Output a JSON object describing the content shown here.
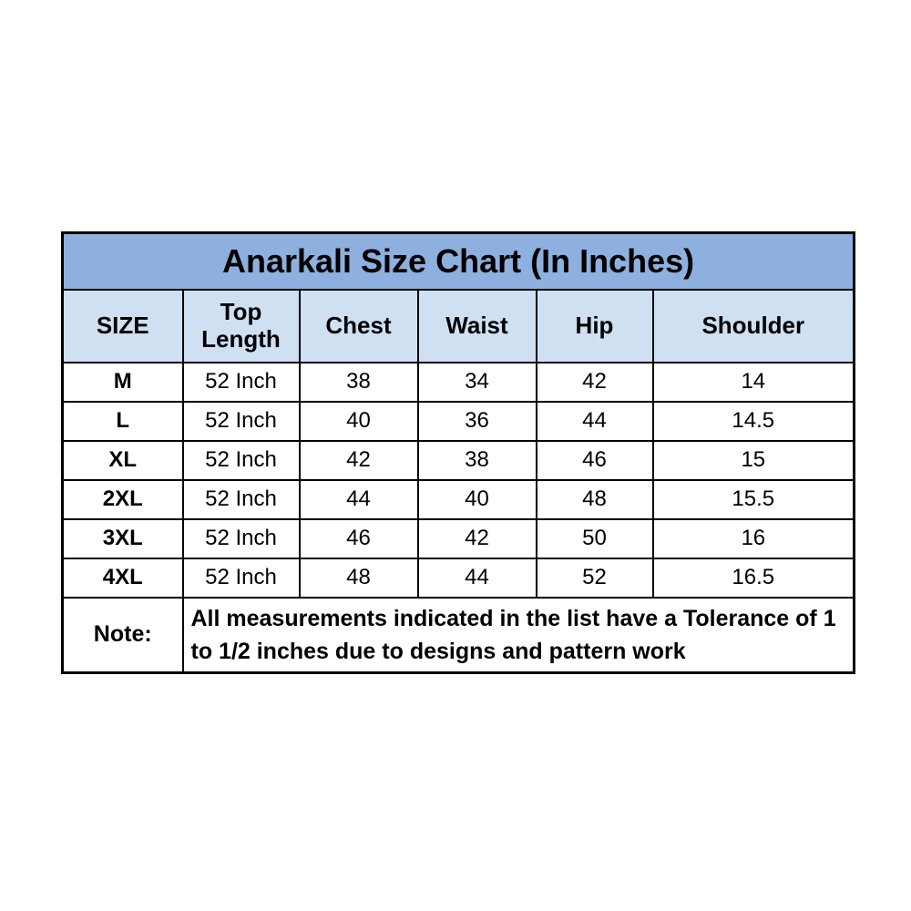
{
  "table": {
    "title": "Anarkali Size Chart (In Inches)",
    "columns": {
      "size": "SIZE",
      "top_length": "Top Length",
      "chest": "Chest",
      "waist": "Waist",
      "hip": "Hip",
      "shoulder": "Shoulder"
    },
    "rows": [
      {
        "size": "M",
        "top_length": "52 Inch",
        "chest": "38",
        "waist": "34",
        "hip": "42",
        "shoulder": "14"
      },
      {
        "size": "L",
        "top_length": "52 Inch",
        "chest": "40",
        "waist": "36",
        "hip": "44",
        "shoulder": "14.5"
      },
      {
        "size": "XL",
        "top_length": "52 Inch",
        "chest": "42",
        "waist": "38",
        "hip": "46",
        "shoulder": "15"
      },
      {
        "size": "2XL",
        "top_length": "52 Inch",
        "chest": "44",
        "waist": "40",
        "hip": "48",
        "shoulder": "15.5"
      },
      {
        "size": "3XL",
        "top_length": "52 Inch",
        "chest": "46",
        "waist": "42",
        "hip": "50",
        "shoulder": "16"
      },
      {
        "size": "4XL",
        "top_length": "52 Inch",
        "chest": "48",
        "waist": "44",
        "hip": "52",
        "shoulder": "16.5"
      }
    ],
    "note_label": "Note:",
    "note_text": "All measurements indicated in the list have a Tolerance of 1 to 1/2 inches due to designs and pattern work"
  },
  "colors": {
    "title_bg": "#8eb0de",
    "header_bg": "#cfe0f2",
    "row_bg": "#ffffff",
    "border": "#000000",
    "text": "#000000"
  },
  "chart_data": {
    "type": "table",
    "title": "Anarkali Size Chart (In Inches)",
    "columns": [
      "SIZE",
      "Top Length",
      "Chest",
      "Waist",
      "Hip",
      "Shoulder"
    ],
    "rows": [
      [
        "M",
        "52 Inch",
        38,
        34,
        42,
        14
      ],
      [
        "L",
        "52 Inch",
        40,
        36,
        44,
        14.5
      ],
      [
        "XL",
        "52 Inch",
        42,
        38,
        46,
        15
      ],
      [
        "2XL",
        "52 Inch",
        44,
        40,
        48,
        15.5
      ],
      [
        "3XL",
        "52 Inch",
        46,
        42,
        50,
        16
      ],
      [
        "4XL",
        "52 Inch",
        48,
        44,
        52,
        16.5
      ]
    ],
    "note": "Note: All measurements indicated in the list have a Tolerance of 1 to 1/2 inches due to designs and pattern work",
    "layout_hints": {
      "title_row_bg": "#8eb0de",
      "header_row_bg": "#cfe0f2",
      "grid": "on"
    }
  }
}
